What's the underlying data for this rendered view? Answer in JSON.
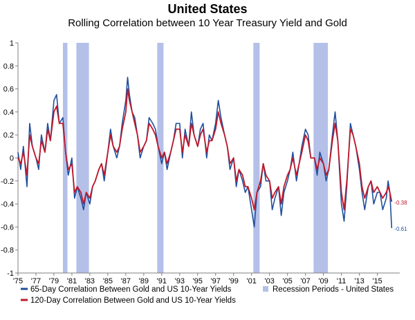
{
  "title": "United States",
  "subtitle": "Rolling Correlation between 10 Year Treasury Yield and Gold",
  "chart_data": {
    "type": "line",
    "title": "United States",
    "subtitle": "Rolling Correlation between 10 Year Treasury Yield and Gold",
    "xlabel": "",
    "ylabel": "",
    "xlim": [
      1975,
      2017.5
    ],
    "ylim": [
      -1,
      1
    ],
    "x_tick_labels": [
      "'75",
      "'77",
      "'79",
      "'81",
      "'83",
      "'85",
      "'87",
      "'89",
      "'91",
      "'93",
      "'95",
      "'97",
      "'99",
      "'01",
      "'03",
      "'05",
      "'07",
      "'09",
      "'11",
      "'13",
      "'15"
    ],
    "x_tick_years": [
      1975,
      1977,
      1979,
      1981,
      1983,
      1985,
      1987,
      1989,
      1991,
      1993,
      1995,
      1997,
      1999,
      2001,
      2003,
      2005,
      2007,
      2009,
      2011,
      2013,
      2015
    ],
    "y_ticks": [
      1,
      0.8,
      0.6,
      0.4,
      0.2,
      0,
      -0.2,
      -0.4,
      -0.6,
      -0.8,
      -1
    ],
    "y_tick_labels": [
      "1",
      "0.8",
      "0.6",
      "0.4",
      "0.2",
      "0",
      "-0.2",
      "-0.4",
      "-0.6",
      "-0.8",
      "-1"
    ],
    "recession_periods": [
      [
        1980.0,
        1980.5
      ],
      [
        1981.5,
        1982.9
      ],
      [
        1990.5,
        1991.2
      ],
      [
        2001.2,
        2001.9
      ],
      [
        2007.9,
        2009.5
      ]
    ],
    "series": [
      {
        "name": "65-Day Correlation Between Gold and US 10-Year Yields",
        "color": "#1f4e9b",
        "x": [
          1975.0,
          1975.3,
          1975.6,
          1976.0,
          1976.3,
          1976.6,
          1977.0,
          1977.3,
          1977.6,
          1978.0,
          1978.3,
          1978.6,
          1979.0,
          1979.3,
          1979.6,
          1980.0,
          1980.3,
          1980.6,
          1981.0,
          1981.3,
          1981.6,
          1982.0,
          1982.3,
          1982.6,
          1983.0,
          1983.3,
          1983.6,
          1984.0,
          1984.3,
          1984.6,
          1985.0,
          1985.3,
          1985.6,
          1986.0,
          1986.3,
          1986.6,
          1987.0,
          1987.2,
          1987.4,
          1987.7,
          1988.0,
          1988.3,
          1988.6,
          1989.0,
          1989.3,
          1989.6,
          1990.0,
          1990.3,
          1990.6,
          1991.0,
          1991.3,
          1991.6,
          1992.0,
          1992.3,
          1992.6,
          1993.0,
          1993.3,
          1993.6,
          1994.0,
          1994.3,
          1994.6,
          1995.0,
          1995.3,
          1995.6,
          1996.0,
          1996.3,
          1996.6,
          1997.0,
          1997.3,
          1997.6,
          1998.0,
          1998.3,
          1998.6,
          1999.0,
          1999.3,
          1999.6,
          2000.0,
          2000.3,
          2000.6,
          2001.0,
          2001.3,
          2001.6,
          2002.0,
          2002.3,
          2002.6,
          2003.0,
          2003.3,
          2003.6,
          2004.0,
          2004.3,
          2004.6,
          2005.0,
          2005.3,
          2005.6,
          2006.0,
          2006.3,
          2006.6,
          2007.0,
          2007.3,
          2007.6,
          2008.0,
          2008.3,
          2008.6,
          2009.0,
          2009.3,
          2009.6,
          2010.0,
          2010.3,
          2010.6,
          2011.0,
          2011.3,
          2011.6,
          2012.0,
          2012.3,
          2012.6,
          2013.0,
          2013.3,
          2013.6,
          2014.0,
          2014.3,
          2014.6,
          2015.0,
          2015.3,
          2015.6,
          2016.0,
          2016.2,
          2016.4,
          2016.6
        ],
        "y": [
          0.05,
          -0.1,
          0.1,
          -0.25,
          0.3,
          0.1,
          0.0,
          -0.1,
          0.2,
          0.05,
          0.3,
          0.15,
          0.5,
          0.55,
          0.3,
          0.35,
          0.05,
          -0.15,
          0.0,
          -0.35,
          -0.25,
          -0.35,
          -0.45,
          -0.3,
          -0.4,
          -0.25,
          -0.2,
          -0.1,
          -0.05,
          -0.2,
          0.05,
          0.25,
          0.1,
          0.0,
          0.1,
          0.3,
          0.5,
          0.7,
          0.55,
          0.4,
          0.35,
          0.2,
          0.0,
          0.1,
          0.15,
          0.35,
          0.3,
          0.25,
          0.1,
          -0.05,
          0.05,
          -0.1,
          0.05,
          0.15,
          0.3,
          0.3,
          0.0,
          0.25,
          0.1,
          0.4,
          0.2,
          0.1,
          0.25,
          0.3,
          0.0,
          0.2,
          0.15,
          0.3,
          0.5,
          0.35,
          0.2,
          0.1,
          -0.1,
          0.0,
          -0.25,
          -0.1,
          -0.2,
          -0.3,
          -0.25,
          -0.45,
          -0.6,
          -0.3,
          -0.25,
          -0.05,
          -0.2,
          -0.2,
          -0.45,
          -0.35,
          -0.25,
          -0.5,
          -0.3,
          -0.2,
          -0.1,
          0.05,
          -0.2,
          -0.05,
          0.1,
          0.25,
          0.2,
          0.0,
          0.0,
          -0.15,
          0.05,
          -0.05,
          -0.2,
          -0.1,
          0.2,
          0.4,
          0.15,
          -0.4,
          -0.55,
          -0.25,
          0.3,
          0.2,
          0.1,
          -0.1,
          -0.3,
          -0.45,
          -0.25,
          -0.2,
          -0.4,
          -0.3,
          -0.3,
          -0.45,
          -0.35,
          -0.2,
          -0.3,
          -0.61
        ]
      },
      {
        "name": "120-Day Correlation Between Gold and US 10-Year Yields",
        "color": "#c0182a",
        "x": [
          1975.0,
          1975.3,
          1975.6,
          1976.0,
          1976.3,
          1976.6,
          1977.0,
          1977.3,
          1977.6,
          1978.0,
          1978.3,
          1978.6,
          1979.0,
          1979.3,
          1979.6,
          1980.0,
          1980.3,
          1980.6,
          1981.0,
          1981.3,
          1981.6,
          1982.0,
          1982.3,
          1982.6,
          1983.0,
          1983.3,
          1983.6,
          1984.0,
          1984.3,
          1984.6,
          1985.0,
          1985.3,
          1985.6,
          1986.0,
          1986.3,
          1986.6,
          1987.0,
          1987.2,
          1987.4,
          1987.7,
          1988.0,
          1988.3,
          1988.6,
          1989.0,
          1989.3,
          1989.6,
          1990.0,
          1990.3,
          1990.6,
          1991.0,
          1991.3,
          1991.6,
          1992.0,
          1992.3,
          1992.6,
          1993.0,
          1993.3,
          1993.6,
          1994.0,
          1994.3,
          1994.6,
          1995.0,
          1995.3,
          1995.6,
          1996.0,
          1996.3,
          1996.6,
          1997.0,
          1997.3,
          1997.6,
          1998.0,
          1998.3,
          1998.6,
          1999.0,
          1999.3,
          1999.6,
          2000.0,
          2000.3,
          2000.6,
          2001.0,
          2001.3,
          2001.6,
          2002.0,
          2002.3,
          2002.6,
          2003.0,
          2003.3,
          2003.6,
          2004.0,
          2004.3,
          2004.6,
          2005.0,
          2005.3,
          2005.6,
          2006.0,
          2006.3,
          2006.6,
          2007.0,
          2007.3,
          2007.6,
          2008.0,
          2008.3,
          2008.6,
          2009.0,
          2009.3,
          2009.6,
          2010.0,
          2010.3,
          2010.6,
          2011.0,
          2011.3,
          2011.6,
          2012.0,
          2012.3,
          2012.6,
          2013.0,
          2013.3,
          2013.6,
          2014.0,
          2014.3,
          2014.6,
          2015.0,
          2015.3,
          2015.6,
          2016.0,
          2016.2,
          2016.4,
          2016.6
        ],
        "y": [
          0.0,
          -0.05,
          0.05,
          -0.15,
          0.2,
          0.1,
          0.0,
          -0.05,
          0.15,
          0.05,
          0.25,
          0.15,
          0.4,
          0.45,
          0.3,
          0.3,
          0.05,
          -0.1,
          -0.05,
          -0.3,
          -0.25,
          -0.3,
          -0.4,
          -0.3,
          -0.35,
          -0.25,
          -0.2,
          -0.1,
          -0.05,
          -0.15,
          0.05,
          0.2,
          0.1,
          0.05,
          0.1,
          0.25,
          0.4,
          0.6,
          0.5,
          0.4,
          0.3,
          0.2,
          0.05,
          0.1,
          0.15,
          0.3,
          0.25,
          0.2,
          0.1,
          0.0,
          0.05,
          -0.05,
          0.05,
          0.15,
          0.25,
          0.25,
          0.05,
          0.2,
          0.1,
          0.3,
          0.2,
          0.1,
          0.2,
          0.25,
          0.05,
          0.15,
          0.15,
          0.25,
          0.4,
          0.3,
          0.2,
          0.1,
          -0.05,
          0.0,
          -0.2,
          -0.1,
          -0.15,
          -0.25,
          -0.25,
          -0.35,
          -0.45,
          -0.3,
          -0.2,
          -0.05,
          -0.15,
          -0.2,
          -0.35,
          -0.3,
          -0.25,
          -0.4,
          -0.25,
          -0.15,
          -0.1,
          0.0,
          -0.15,
          -0.05,
          0.05,
          0.2,
          0.15,
          0.0,
          0.0,
          -0.1,
          0.0,
          -0.05,
          -0.15,
          -0.1,
          0.15,
          0.3,
          0.15,
          -0.3,
          -0.45,
          -0.2,
          0.25,
          0.2,
          0.1,
          -0.05,
          -0.25,
          -0.35,
          -0.25,
          -0.2,
          -0.3,
          -0.25,
          -0.3,
          -0.35,
          -0.3,
          -0.25,
          -0.3,
          -0.38
        ]
      }
    ],
    "end_labels": [
      {
        "series": 1,
        "text": "-0.38",
        "color": "#c0182a"
      },
      {
        "series": 0,
        "text": "-0.61",
        "color": "#1f4e9b"
      }
    ],
    "legend": {
      "placement": "bottom",
      "entries": [
        {
          "text": "65-Day Correlation Between Gold and US 10-Year Yields",
          "color": "#1f4e9b",
          "kind": "line"
        },
        {
          "text": "Recession Periods - United States",
          "color": "#b4c0e8",
          "kind": "patch"
        },
        {
          "text": "120-Day Correlation Between Gold and US 10-Year Yields",
          "color": "#c0182a",
          "kind": "line"
        }
      ]
    },
    "grid": false,
    "recession_color": "#b4c0e8"
  }
}
